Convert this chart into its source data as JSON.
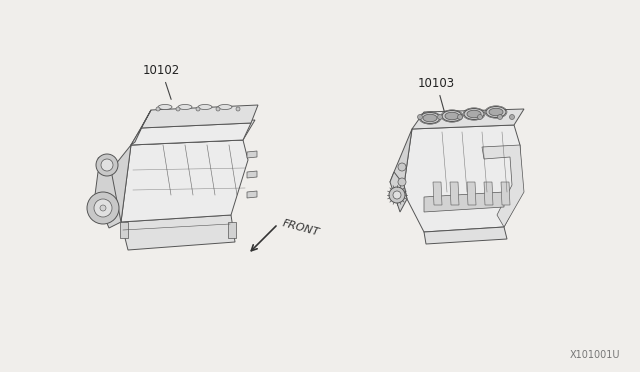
{
  "background_color": "#f0eeeb",
  "label_10102": "10102",
  "label_10103": "10103",
  "label_front": "FRONT",
  "ref_number": "X101001U",
  "fig_width": 6.4,
  "fig_height": 3.72,
  "dpi": 100,
  "line_color": "#555555",
  "face_light": "#ececec",
  "face_mid": "#e0e0e0",
  "face_dark": "#d2d2d2",
  "face_darker": "#c8c8c8"
}
